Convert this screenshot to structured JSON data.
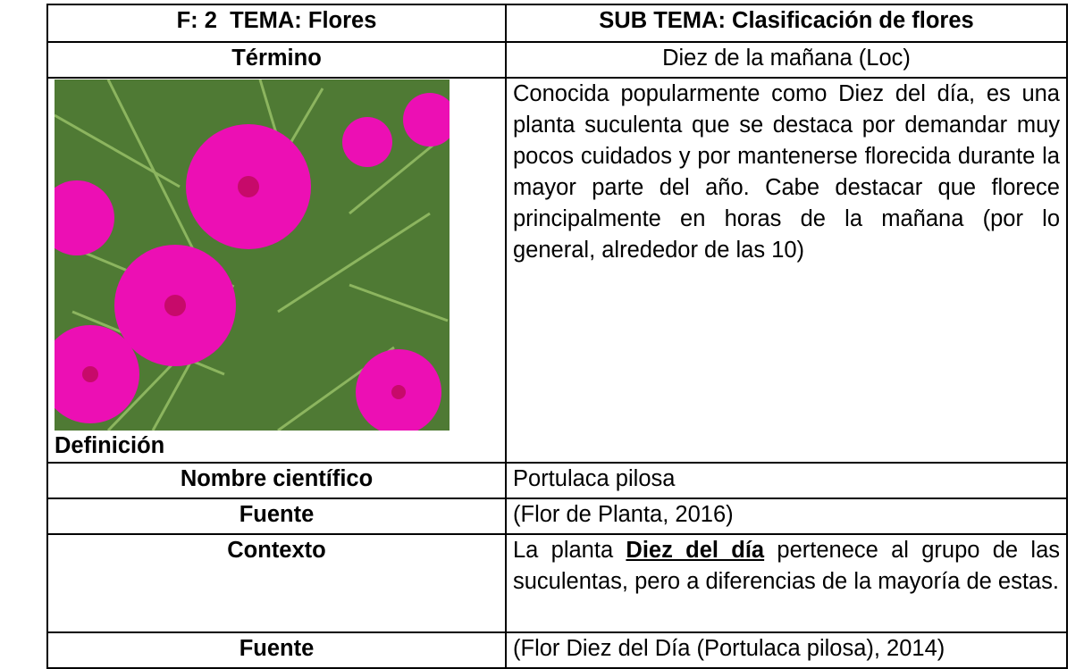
{
  "header": {
    "left": "F: 2  TEMA: Flores",
    "right": "SUB TEMA: Clasificación de flores"
  },
  "termino": {
    "label": "Término",
    "value": "Diez de la mañana (Loc)"
  },
  "definicion": {
    "label": "Definición",
    "text": "Conocida popularmente como Diez del día, es una planta suculenta que se destaca por demandar muy pocos cuidados y por mantenerse florecida durante la mayor parte del año. Cabe destacar que florece principalmente en horas de la mañana (por lo general, alrededor de las 10)"
  },
  "nombre_cientifico": {
    "label": "Nombre científico",
    "value": "Portulaca pilosa"
  },
  "fuente_1": {
    "label": "Fuente",
    "value": "(Flor de Planta, 2016)"
  },
  "contexto": {
    "label": "Contexto",
    "before": "La planta ",
    "term": "Diez del día",
    "after": " pertenece al grupo de las suculentas, pero a diferencias de la mayoría de estas."
  },
  "fuente_2": {
    "label": "Fuente",
    "value": "(Flor Diez del Día (Portulaca pilosa), 2014)"
  }
}
